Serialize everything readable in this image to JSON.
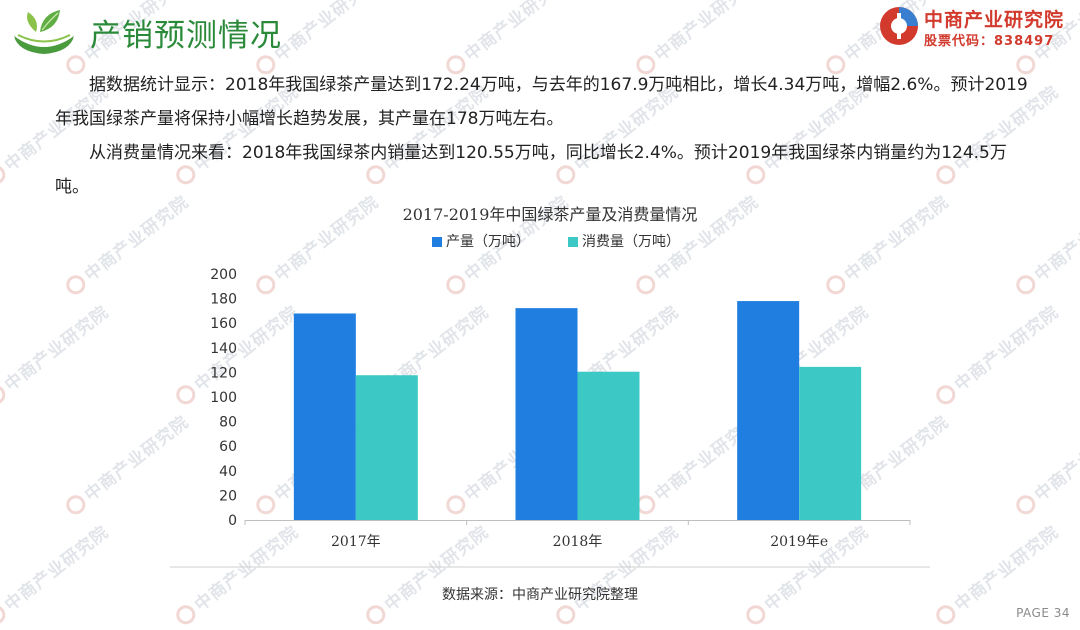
{
  "header": {
    "title": "产销预测情况",
    "logo_name": "中商产业研究院",
    "logo_code": "股票代码：838497"
  },
  "watermark_text": "中商产业研究院",
  "body": {
    "paragraphs": [
      "据数据统计显示：2018年我国绿茶产量达到172.24万吨，与去年的167.9万吨相比，增长4.34万吨，增幅2.6%。预计2019年我国绿茶产量将保持小幅增长趋势发展，其产量在178万吨左右。",
      "从消费量情况来看：2018年我国绿茶内销量达到120.55万吨，同比增长2.4%。预计2019年我国绿茶内销量约为124.5万吨。"
    ]
  },
  "chart_data": {
    "type": "bar",
    "title": "2017-2019年中国绿茶产量及消费量情况",
    "categories": [
      "2017年",
      "2018年",
      "2019年e"
    ],
    "series": [
      {
        "name": "产量（万吨）",
        "values": [
          167.9,
          172.24,
          178
        ],
        "color": "#1f7ee0"
      },
      {
        "name": "消费量（万吨）",
        "values": [
          117.7,
          120.55,
          124.5
        ],
        "color": "#3cc9c5"
      }
    ],
    "ylim": [
      0,
      200
    ],
    "yticks": [
      "0",
      "20",
      "40",
      "60",
      "80",
      "100",
      "120",
      "140",
      "160",
      "180",
      "200"
    ],
    "legend_position": "top",
    "grid": false
  },
  "source": "数据来源：中商产业研究院整理",
  "page_label": "PAGE 34",
  "colors": {
    "title_green": "#2a8a3a",
    "brand_red": "#d23a2e",
    "production_blue": "#1f7ee0",
    "consumption_teal": "#3cc9c5"
  }
}
